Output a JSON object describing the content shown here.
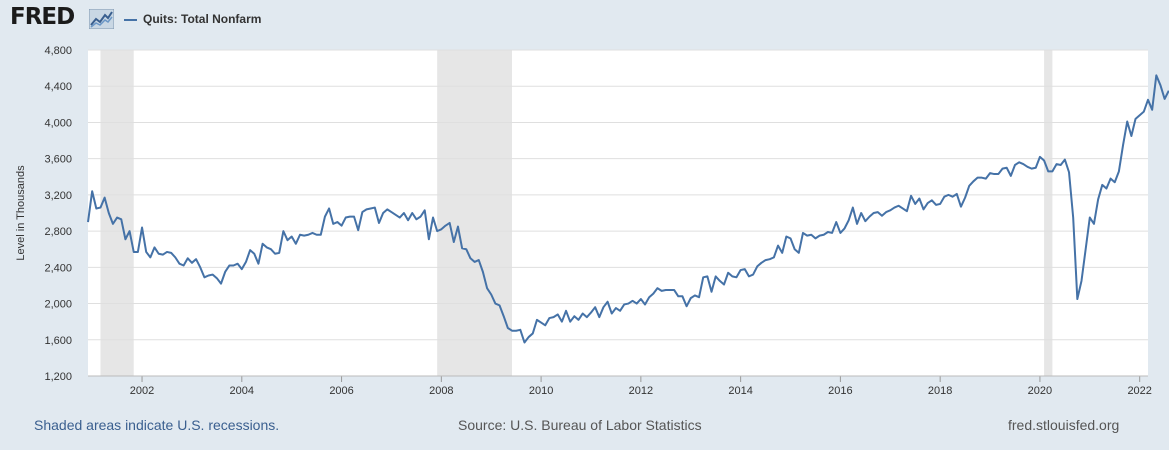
{
  "header": {
    "logo_text": "FRED",
    "logo_icon": "fred-graph-icon",
    "legend_label": "Quits: Total Nonfarm"
  },
  "footer": {
    "recession_note": "Shaded areas indicate U.S. recessions.",
    "source": "Source: U.S. Bureau of Labor Statistics",
    "site": "fred.stlouisfed.org"
  },
  "colors": {
    "background": "#e1e9f0",
    "plot_background": "#ffffff",
    "series_line": "#4572a7",
    "recession_shade": "#e6e6e6",
    "gridline": "#dfdfdf"
  },
  "chart_data": {
    "type": "line",
    "ylabel": "Level in Thousands",
    "xlabel": "",
    "title": "",
    "x_range": [
      "2000-12-01",
      "2022-03-01"
    ],
    "ylim": [
      1200,
      4800
    ],
    "y_ticks": [
      1200,
      1600,
      2000,
      2400,
      2800,
      3200,
      3600,
      4000,
      4400,
      4800
    ],
    "x_ticks": [
      "2002",
      "2004",
      "2006",
      "2008",
      "2010",
      "2012",
      "2014",
      "2016",
      "2018",
      "2020",
      "2022"
    ],
    "grid": "horizontal",
    "recessions": [
      [
        "2001-03-01",
        "2001-11-01"
      ],
      [
        "2007-12-01",
        "2009-06-01"
      ],
      [
        "2020-02-01",
        "2020-04-01"
      ]
    ],
    "series": [
      {
        "name": "Quits: Total Nonfarm",
        "start": "2000-12",
        "frequency": "monthly",
        "values": [
          2900,
          3240,
          3050,
          3060,
          3170,
          3000,
          2880,
          2950,
          2930,
          2710,
          2800,
          2570,
          2570,
          2840,
          2570,
          2510,
          2620,
          2550,
          2540,
          2570,
          2560,
          2510,
          2440,
          2420,
          2500,
          2450,
          2490,
          2400,
          2290,
          2310,
          2320,
          2280,
          2220,
          2350,
          2420,
          2420,
          2440,
          2380,
          2460,
          2590,
          2550,
          2440,
          2660,
          2620,
          2600,
          2550,
          2560,
          2800,
          2700,
          2740,
          2660,
          2760,
          2750,
          2760,
          2780,
          2760,
          2760,
          2960,
          3050,
          2880,
          2900,
          2860,
          2950,
          2960,
          2960,
          2810,
          3010,
          3040,
          3050,
          3060,
          2890,
          3000,
          3040,
          3010,
          2980,
          2950,
          3000,
          2920,
          3000,
          2930,
          2960,
          3030,
          2710,
          2950,
          2800,
          2820,
          2860,
          2890,
          2680,
          2850,
          2610,
          2600,
          2500,
          2460,
          2480,
          2350,
          2170,
          2100,
          2000,
          1980,
          1860,
          1730,
          1700,
          1700,
          1710,
          1570,
          1630,
          1670,
          1820,
          1790,
          1760,
          1840,
          1850,
          1880,
          1800,
          1920,
          1800,
          1860,
          1820,
          1890,
          1850,
          1900,
          1960,
          1850,
          1960,
          2020,
          1890,
          1950,
          1920,
          1990,
          2000,
          2030,
          2000,
          2050,
          1990,
          2070,
          2110,
          2170,
          2140,
          2150,
          2150,
          2150,
          2080,
          2080,
          1970,
          2060,
          2090,
          2070,
          2290,
          2300,
          2130,
          2300,
          2250,
          2210,
          2340,
          2300,
          2290,
          2370,
          2380,
          2300,
          2320,
          2410,
          2450,
          2480,
          2490,
          2510,
          2640,
          2560,
          2740,
          2720,
          2600,
          2560,
          2780,
          2750,
          2760,
          2720,
          2750,
          2760,
          2790,
          2780,
          2900,
          2780,
          2830,
          2920,
          3060,
          2880,
          3000,
          2910,
          2960,
          3000,
          3010,
          2970,
          3010,
          3030,
          3060,
          3080,
          3050,
          3020,
          3190,
          3100,
          3160,
          3040,
          3110,
          3140,
          3090,
          3100,
          3180,
          3200,
          3180,
          3210,
          3070,
          3170,
          3300,
          3350,
          3390,
          3390,
          3380,
          3440,
          3430,
          3430,
          3490,
          3500,
          3410,
          3530,
          3560,
          3540,
          3510,
          3490,
          3500,
          3620,
          3580,
          3460,
          3460,
          3540,
          3530,
          3590,
          3450,
          2950,
          2050,
          2250,
          2600,
          2950,
          2880,
          3150,
          3310,
          3270,
          3380,
          3340,
          3460,
          3750,
          4010,
          3850,
          4040,
          4080,
          4120,
          4250,
          4140,
          4520,
          4410,
          4260,
          4350
        ]
      }
    ]
  }
}
